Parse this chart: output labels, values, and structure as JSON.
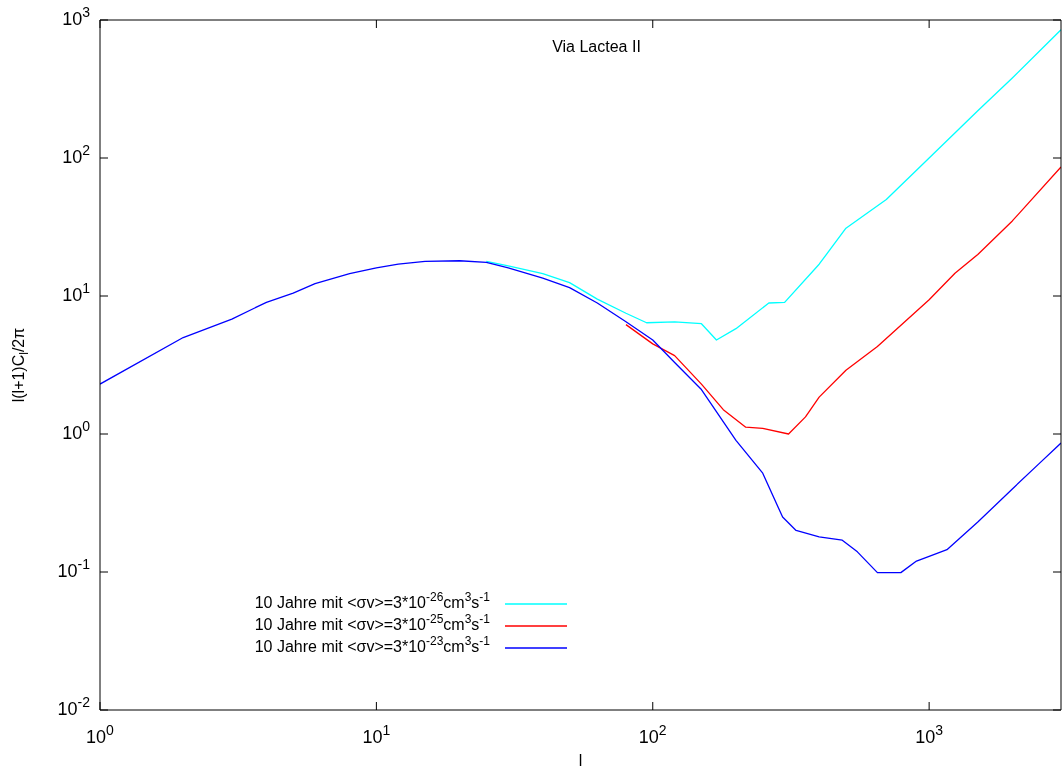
{
  "chart_data": {
    "type": "line",
    "title": "Via Lactea II",
    "xlabel": "l",
    "ylabel": "l(l+1)C$_{l}$/2π",
    "log": "xy",
    "grid": false,
    "legend": "bottom left",
    "marker": "none",
    "line_style": "solid",
    "xlim": [
      1,
      3000
    ],
    "ylim": [
      0.01,
      1000
    ],
    "xticks": [
      {
        "value": 1,
        "label": "10$^{0}$"
      },
      {
        "value": 10,
        "label": "10$^{1}$"
      },
      {
        "value": 100,
        "label": "10$^{2}$"
      },
      {
        "value": 1000,
        "label": "10$^{3}$"
      }
    ],
    "yticks": [
      {
        "value": 0.01,
        "label": "10$^{-2}$"
      },
      {
        "value": 0.1,
        "label": "10$^{-1}$"
      },
      {
        "value": 1,
        "label": "10$^{0}$"
      },
      {
        "value": 10,
        "label": "10$^{1}$"
      },
      {
        "value": 100,
        "label": "10$^{2}$"
      },
      {
        "value": 1000,
        "label": "10$^{3}$"
      }
    ],
    "series": [
      {
        "name": "10 Jahre mit <σv>=3*10$^{-26}$cm$^{3}$s$^{-1}$",
        "color": "#00ffff",
        "x": [
          25,
          30,
          40,
          50,
          63,
          80,
          95,
          120,
          150,
          170,
          200,
          263,
          300,
          400,
          500,
          700,
          1000,
          1500,
          2000,
          3000
        ],
        "values": [
          17.8,
          16.5,
          14.5,
          12.5,
          9.5,
          7.5,
          6.4,
          6.5,
          6.3,
          4.8,
          5.8,
          8.9,
          9,
          17,
          31,
          50,
          100,
          220,
          380,
          850
        ]
      },
      {
        "name": "10 Jahre mit <σv>=3*10$^{-25}$cm$^{3}$s$^{-1}$",
        "color": "#ff0000",
        "x": [
          80,
          100,
          120,
          150,
          180,
          217,
          250,
          310,
          357,
          400,
          500,
          650,
          1000,
          1240,
          1500,
          2000,
          3000
        ],
        "values": [
          6.2,
          4.5,
          3.7,
          2.3,
          1.5,
          1.12,
          1.1,
          1,
          1.33,
          1.85,
          2.9,
          4.3,
          9.4,
          14.6,
          20,
          35,
          86
        ]
      },
      {
        "name": "10 Jahre mit <σv>=3*10$^{-23}$cm$^{3}$s$^{-1}$",
        "color": "#0000ff",
        "x": [
          1,
          2,
          3,
          4,
          5,
          6,
          8,
          10,
          12,
          15,
          20,
          25,
          30,
          40,
          50,
          63,
          80,
          100,
          120,
          150,
          200,
          250,
          295,
          330,
          400,
          485,
          550,
          650,
          790,
          900,
          1000,
          1160,
          1500,
          2000,
          2500,
          3000
        ],
        "values": [
          2.3,
          5,
          6.8,
          9,
          10.5,
          12.3,
          14.5,
          16,
          17,
          17.8,
          18,
          17.5,
          16,
          13.5,
          11.5,
          8.9,
          6.5,
          4.8,
          3.3,
          2.1,
          0.9,
          0.52,
          0.25,
          0.2,
          0.18,
          0.17,
          0.14,
          0.099,
          0.099,
          0.12,
          0.13,
          0.145,
          0.23,
          0.4,
          0.61,
          0.86
        ]
      }
    ]
  }
}
